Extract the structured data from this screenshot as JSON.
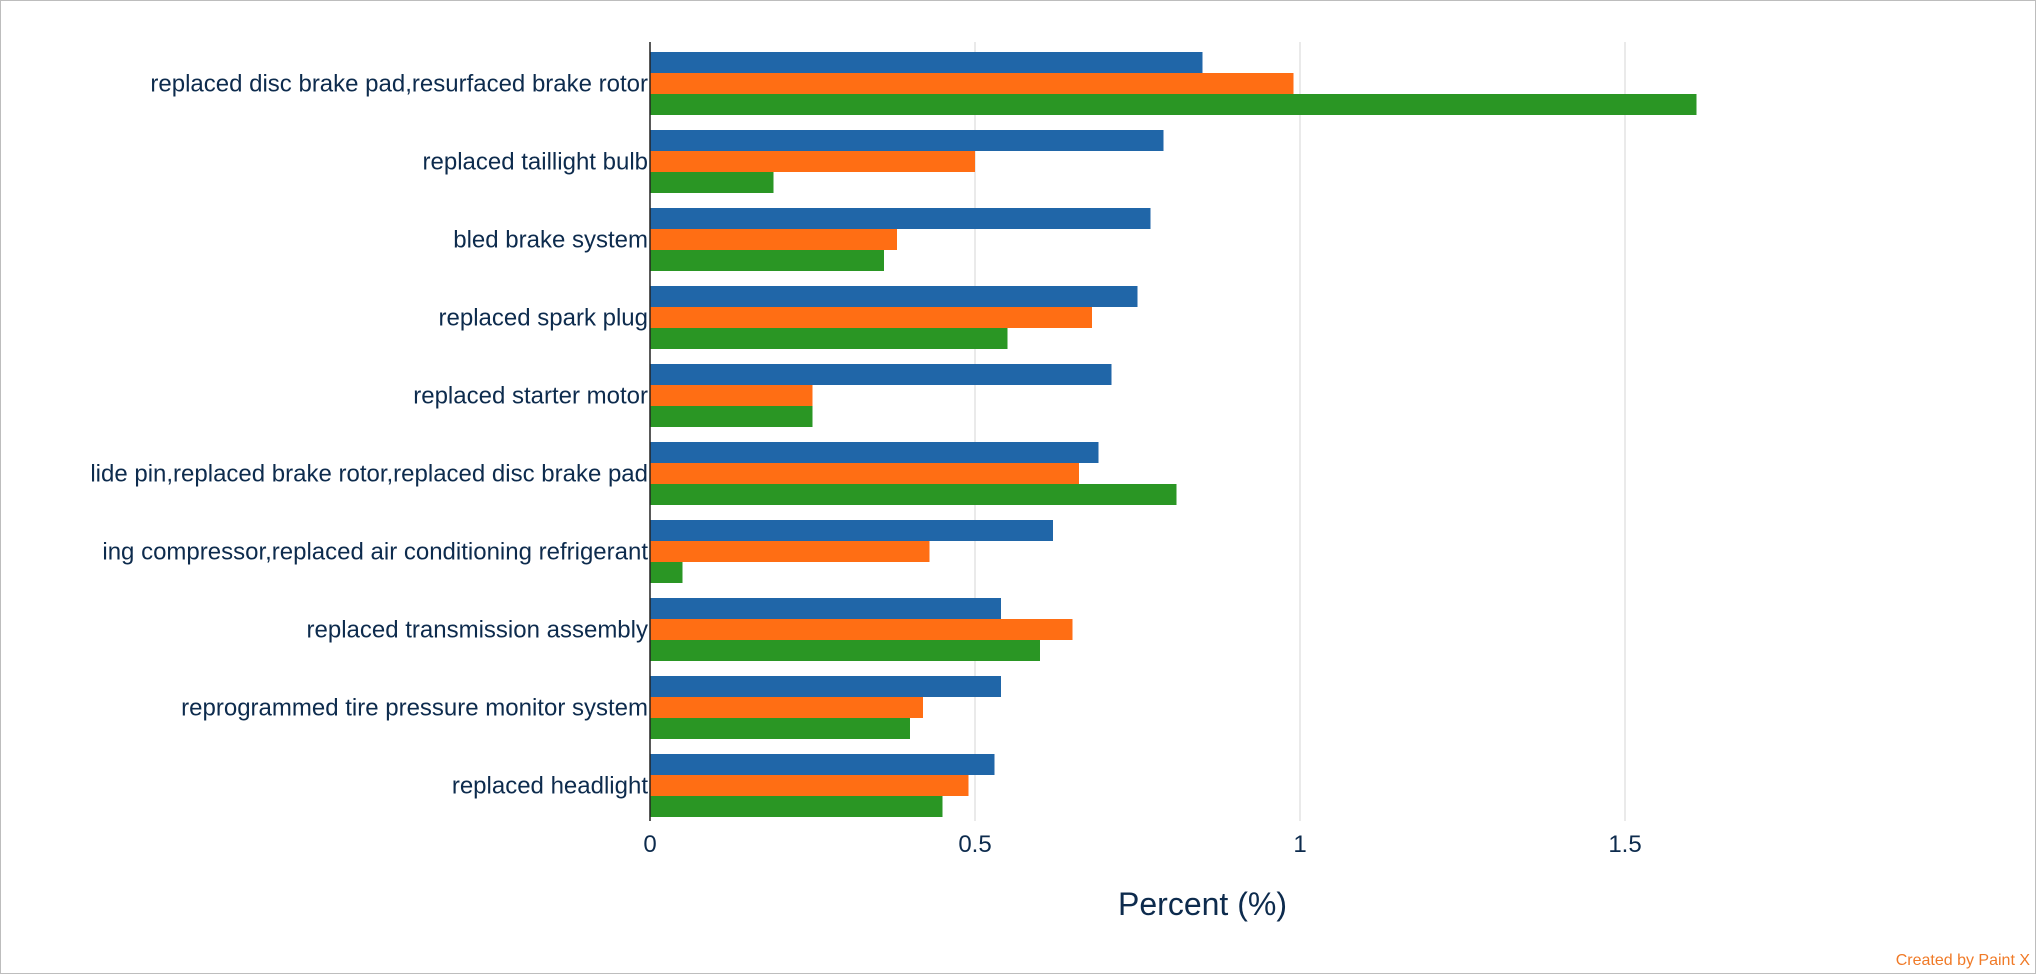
{
  "chart_data": {
    "type": "bar",
    "orientation": "horizontal",
    "categories": [
      "replaced disc brake pad,resurfaced brake rotor",
      "replaced taillight bulb",
      "bled brake system",
      "replaced spark plug",
      "replaced starter motor",
      "lide pin,replaced brake rotor,replaced disc brake pad",
      "ing compressor,replaced air conditioning refrigerant",
      "replaced transmission assembly",
      "reprogrammed tire pressure monitor system",
      "replaced headlight"
    ],
    "series": [
      {
        "color": "#2066a8",
        "values": [
          0.85,
          0.79,
          0.77,
          0.75,
          0.71,
          0.69,
          0.62,
          0.54,
          0.54,
          0.53
        ]
      },
      {
        "color": "#ff6e14",
        "values": [
          0.99,
          0.5,
          0.38,
          0.68,
          0.25,
          0.66,
          0.43,
          0.65,
          0.42,
          0.49
        ]
      },
      {
        "color": "#2a9624",
        "values": [
          1.61,
          0.19,
          0.36,
          0.55,
          0.25,
          0.81,
          0.05,
          0.6,
          0.4,
          0.45
        ]
      }
    ],
    "x_ticks": [
      "0",
      "0.5",
      "1",
      "1.5"
    ],
    "xlim": [
      0,
      2.1
    ],
    "xlabel": "Percent (%)",
    "ylabel": "",
    "title": "",
    "grid": true,
    "legend": "none"
  },
  "credit": "Created by Paint X"
}
